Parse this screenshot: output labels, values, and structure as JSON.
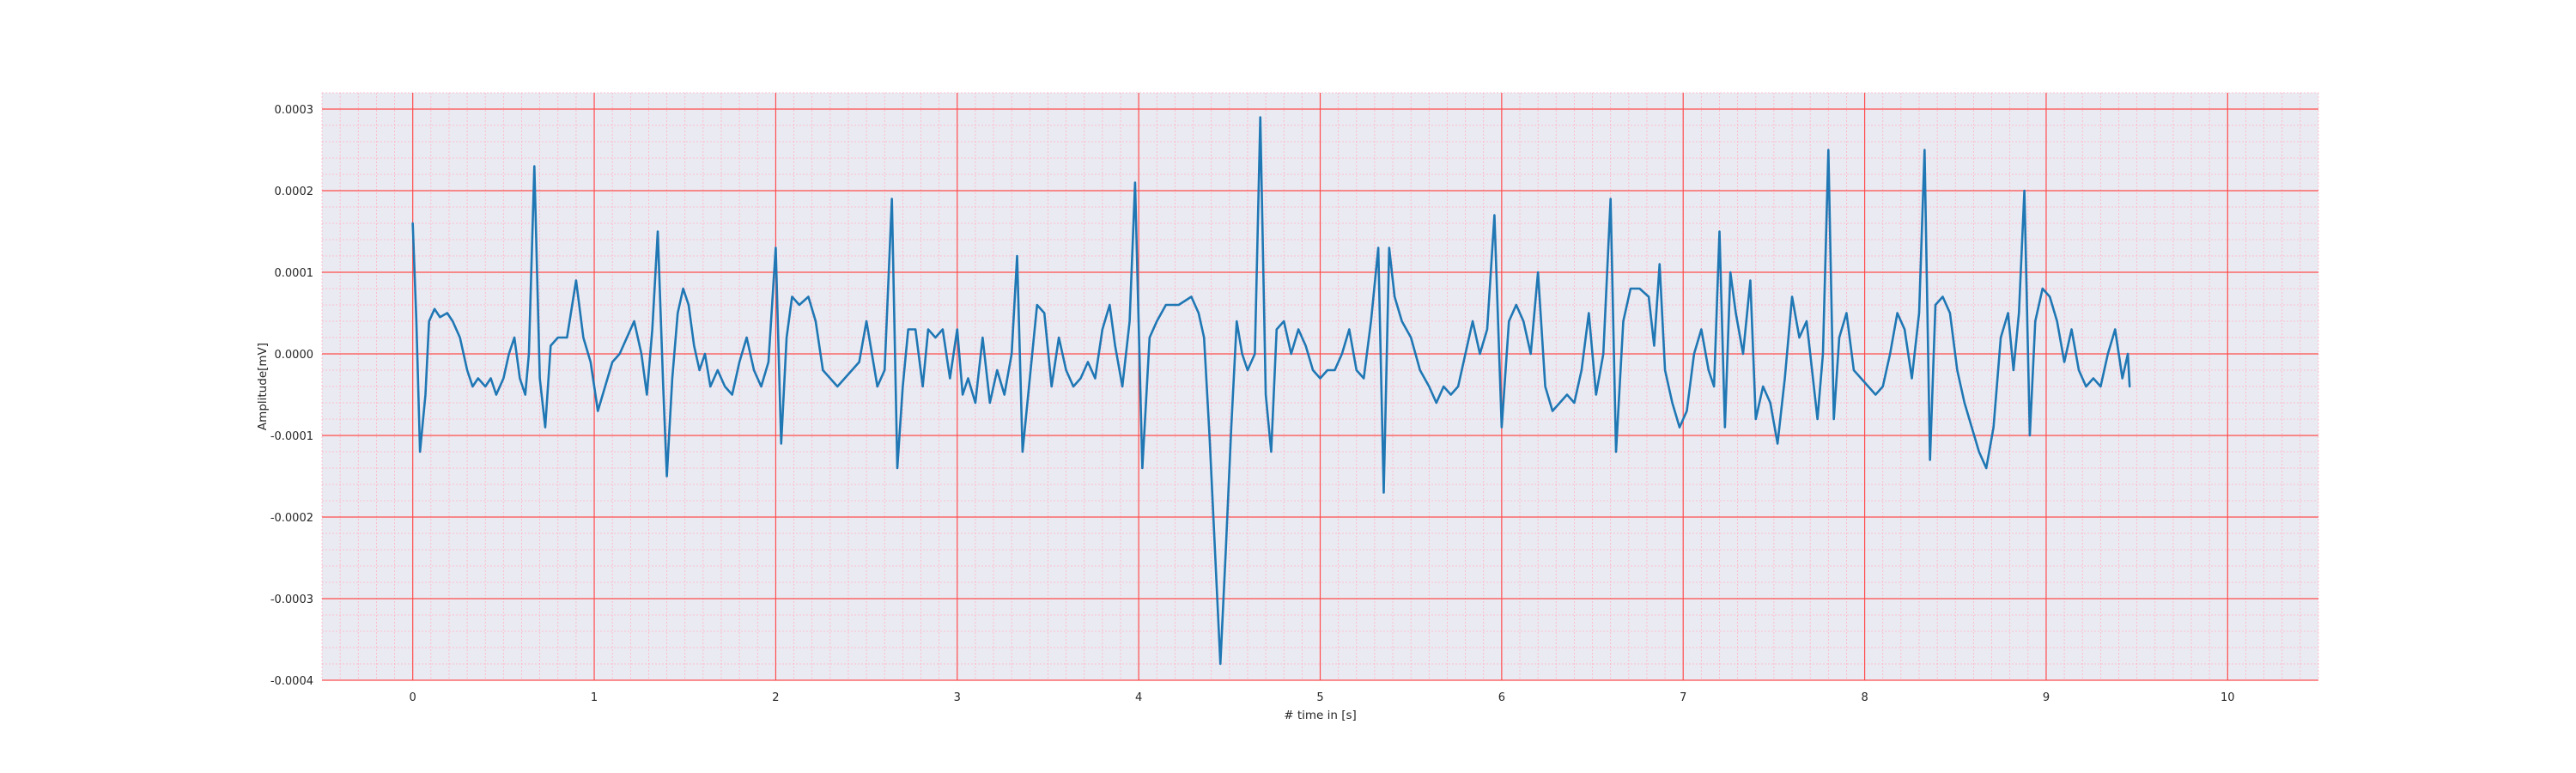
{
  "chart_data": {
    "type": "line",
    "title": "",
    "xlabel": "# time in [s]",
    "ylabel": "Amplitude[mV]",
    "xlim": [
      -0.5,
      10.5
    ],
    "ylim": [
      -0.0004,
      0.00032
    ],
    "x_ticks": [
      0,
      1,
      2,
      3,
      4,
      5,
      6,
      7,
      8,
      9,
      10
    ],
    "x_tick_labels": [
      "0",
      "1",
      "2",
      "3",
      "4",
      "5",
      "6",
      "7",
      "8",
      "9",
      "10"
    ],
    "y_ticks": [
      -0.0004,
      -0.0003,
      -0.0002,
      -0.0001,
      0.0,
      0.0001,
      0.0002,
      0.0003
    ],
    "y_tick_labels": [
      "-0.0004",
      "-0.0003",
      "-0.0002",
      "-0.0001",
      "0.0000",
      "0.0001",
      "0.0002",
      "0.0003"
    ],
    "grid": true,
    "legend": "none",
    "colors": {
      "line": "#1f77b4",
      "plot_background": "#eaeaf2",
      "major_grid": "#ff4d4d",
      "minor_grid": "#ffb3c1"
    },
    "series": [
      {
        "values": [
          [
            0.0,
            0.00016
          ],
          [
            0.02,
            4e-05
          ],
          [
            0.04,
            -0.00012
          ],
          [
            0.07,
            -5e-05
          ],
          [
            0.09,
            4e-05
          ],
          [
            0.12,
            5.5e-05
          ],
          [
            0.15,
            4.5e-05
          ],
          [
            0.19,
            5e-05
          ],
          [
            0.22,
            4e-05
          ],
          [
            0.26,
            2e-05
          ],
          [
            0.3,
            -2e-05
          ],
          [
            0.33,
            -4e-05
          ],
          [
            0.36,
            -3e-05
          ],
          [
            0.4,
            -4e-05
          ],
          [
            0.43,
            -3e-05
          ],
          [
            0.46,
            -5e-05
          ],
          [
            0.5,
            -3e-05
          ],
          [
            0.53,
            0.0
          ],
          [
            0.56,
            2e-05
          ],
          [
            0.59,
            -3e-05
          ],
          [
            0.62,
            -5e-05
          ],
          [
            0.64,
            0.0
          ],
          [
            0.67,
            0.00023
          ],
          [
            0.7,
            -3e-05
          ],
          [
            0.73,
            -9e-05
          ],
          [
            0.76,
            1e-05
          ],
          [
            0.8,
            2e-05
          ],
          [
            0.85,
            2e-05
          ],
          [
            0.9,
            9e-05
          ],
          [
            0.94,
            2e-05
          ],
          [
            0.98,
            -1e-05
          ],
          [
            1.02,
            -7e-05
          ],
          [
            1.06,
            -4e-05
          ],
          [
            1.1,
            -1e-05
          ],
          [
            1.14,
            0.0
          ],
          [
            1.18,
            2e-05
          ],
          [
            1.22,
            4e-05
          ],
          [
            1.26,
            0.0
          ],
          [
            1.29,
            -5e-05
          ],
          [
            1.32,
            3e-05
          ],
          [
            1.35,
            0.00015
          ],
          [
            1.38,
            -4e-05
          ],
          [
            1.4,
            -0.00015
          ],
          [
            1.43,
            -3e-05
          ],
          [
            1.46,
            5e-05
          ],
          [
            1.49,
            8e-05
          ],
          [
            1.52,
            6e-05
          ],
          [
            1.55,
            1e-05
          ],
          [
            1.58,
            -2e-05
          ],
          [
            1.61,
            0.0
          ],
          [
            1.64,
            -4e-05
          ],
          [
            1.68,
            -2e-05
          ],
          [
            1.72,
            -4e-05
          ],
          [
            1.76,
            -5e-05
          ],
          [
            1.8,
            -1e-05
          ],
          [
            1.84,
            2e-05
          ],
          [
            1.88,
            -2e-05
          ],
          [
            1.92,
            -4e-05
          ],
          [
            1.96,
            -1e-05
          ],
          [
            2.0,
            0.00013
          ],
          [
            2.03,
            -0.00011
          ],
          [
            2.06,
            2e-05
          ],
          [
            2.09,
            7e-05
          ],
          [
            2.13,
            6e-05
          ],
          [
            2.18,
            7e-05
          ],
          [
            2.22,
            4e-05
          ],
          [
            2.26,
            -2e-05
          ],
          [
            2.3,
            -3e-05
          ],
          [
            2.34,
            -4e-05
          ],
          [
            2.38,
            -3e-05
          ],
          [
            2.42,
            -2e-05
          ],
          [
            2.46,
            -1e-05
          ],
          [
            2.5,
            4e-05
          ],
          [
            2.53,
            0.0
          ],
          [
            2.56,
            -4e-05
          ],
          [
            2.6,
            -2e-05
          ],
          [
            2.64,
            0.00019
          ],
          [
            2.67,
            -0.00014
          ],
          [
            2.7,
            -4e-05
          ],
          [
            2.73,
            3e-05
          ],
          [
            2.77,
            3e-05
          ],
          [
            2.81,
            -4e-05
          ],
          [
            2.84,
            3e-05
          ],
          [
            2.88,
            2e-05
          ],
          [
            2.92,
            3e-05
          ],
          [
            2.96,
            -3e-05
          ],
          [
            3.0,
            3e-05
          ],
          [
            3.03,
            -5e-05
          ],
          [
            3.06,
            -3e-05
          ],
          [
            3.1,
            -6e-05
          ],
          [
            3.14,
            2e-05
          ],
          [
            3.18,
            -6e-05
          ],
          [
            3.22,
            -2e-05
          ],
          [
            3.26,
            -5e-05
          ],
          [
            3.3,
            0.0
          ],
          [
            3.33,
            0.00012
          ],
          [
            3.36,
            -0.00012
          ],
          [
            3.4,
            -3e-05
          ],
          [
            3.44,
            6e-05
          ],
          [
            3.48,
            5e-05
          ],
          [
            3.52,
            -4e-05
          ],
          [
            3.56,
            2e-05
          ],
          [
            3.6,
            -2e-05
          ],
          [
            3.64,
            -4e-05
          ],
          [
            3.68,
            -3e-05
          ],
          [
            3.72,
            -1e-05
          ],
          [
            3.76,
            -3e-05
          ],
          [
            3.8,
            3e-05
          ],
          [
            3.84,
            6e-05
          ],
          [
            3.87,
            1e-05
          ],
          [
            3.91,
            -4e-05
          ],
          [
            3.95,
            4e-05
          ],
          [
            3.98,
            0.00021
          ],
          [
            4.02,
            -0.00014
          ],
          [
            4.06,
            2e-05
          ],
          [
            4.1,
            4e-05
          ],
          [
            4.15,
            6e-05
          ],
          [
            4.22,
            6e-05
          ],
          [
            4.29,
            7e-05
          ],
          [
            4.33,
            5e-05
          ],
          [
            4.36,
            2e-05
          ],
          [
            4.39,
            -0.0001
          ],
          [
            4.42,
            -0.00024
          ],
          [
            4.45,
            -0.00038
          ],
          [
            4.48,
            -0.00024
          ],
          [
            4.51,
            -9e-05
          ],
          [
            4.54,
            4e-05
          ],
          [
            4.57,
            0.0
          ],
          [
            4.6,
            -2e-05
          ],
          [
            4.64,
            0.0
          ],
          [
            4.67,
            0.00029
          ],
          [
            4.7,
            -5e-05
          ],
          [
            4.73,
            -0.00012
          ],
          [
            4.76,
            3e-05
          ],
          [
            4.8,
            4e-05
          ],
          [
            4.84,
            0.0
          ],
          [
            4.88,
            3e-05
          ],
          [
            4.92,
            1e-05
          ],
          [
            4.96,
            -2e-05
          ],
          [
            5.0,
            -3e-05
          ],
          [
            5.04,
            -2e-05
          ],
          [
            5.08,
            -2e-05
          ],
          [
            5.12,
            0.0
          ],
          [
            5.16,
            3e-05
          ],
          [
            5.2,
            -2e-05
          ],
          [
            5.24,
            -3e-05
          ],
          [
            5.28,
            4e-05
          ],
          [
            5.32,
            0.00013
          ],
          [
            5.35,
            -0.00017
          ],
          [
            5.38,
            0.00013
          ],
          [
            5.41,
            7e-05
          ],
          [
            5.45,
            4e-05
          ],
          [
            5.5,
            2e-05
          ],
          [
            5.55,
            -2e-05
          ],
          [
            5.6,
            -4e-05
          ],
          [
            5.64,
            -6e-05
          ],
          [
            5.68,
            -4e-05
          ],
          [
            5.72,
            -5e-05
          ],
          [
            5.76,
            -4e-05
          ],
          [
            5.8,
            0.0
          ],
          [
            5.84,
            4e-05
          ],
          [
            5.88,
            0.0
          ],
          [
            5.92,
            3e-05
          ],
          [
            5.96,
            0.00017
          ],
          [
            6.0,
            -9e-05
          ],
          [
            6.04,
            4e-05
          ],
          [
            6.08,
            6e-05
          ],
          [
            6.12,
            4e-05
          ],
          [
            6.16,
            0.0
          ],
          [
            6.2,
            0.0001
          ],
          [
            6.24,
            -4e-05
          ],
          [
            6.28,
            -7e-05
          ],
          [
            6.32,
            -6e-05
          ],
          [
            6.36,
            -5e-05
          ],
          [
            6.4,
            -6e-05
          ],
          [
            6.44,
            -2e-05
          ],
          [
            6.48,
            5e-05
          ],
          [
            6.52,
            -5e-05
          ],
          [
            6.56,
            0.0
          ],
          [
            6.6,
            0.00019
          ],
          [
            6.63,
            -0.00012
          ],
          [
            6.67,
            4e-05
          ],
          [
            6.71,
            8e-05
          ],
          [
            6.76,
            8e-05
          ],
          [
            6.81,
            7e-05
          ],
          [
            6.84,
            1e-05
          ],
          [
            6.87,
            0.00011
          ],
          [
            6.9,
            -2e-05
          ],
          [
            6.94,
            -6e-05
          ],
          [
            6.98,
            -9e-05
          ],
          [
            7.02,
            -7e-05
          ],
          [
            7.06,
            0.0
          ],
          [
            7.1,
            3e-05
          ],
          [
            7.14,
            -2e-05
          ],
          [
            7.17,
            -4e-05
          ],
          [
            7.2,
            0.00015
          ],
          [
            7.23,
            -9e-05
          ],
          [
            7.26,
            0.0001
          ],
          [
            7.29,
            5e-05
          ],
          [
            7.33,
            0.0
          ],
          [
            7.37,
            9e-05
          ],
          [
            7.4,
            -8e-05
          ],
          [
            7.44,
            -4e-05
          ],
          [
            7.48,
            -6e-05
          ],
          [
            7.52,
            -0.00011
          ],
          [
            7.56,
            -3e-05
          ],
          [
            7.6,
            7e-05
          ],
          [
            7.64,
            2e-05
          ],
          [
            7.68,
            4e-05
          ],
          [
            7.71,
            -2e-05
          ],
          [
            7.74,
            -8e-05
          ],
          [
            7.77,
            0.0
          ],
          [
            7.8,
            0.00025
          ],
          [
            7.83,
            -8e-05
          ],
          [
            7.86,
            2e-05
          ],
          [
            7.9,
            5e-05
          ],
          [
            7.94,
            -2e-05
          ],
          [
            7.98,
            -3e-05
          ],
          [
            8.02,
            -4e-05
          ],
          [
            8.06,
            -5e-05
          ],
          [
            8.1,
            -4e-05
          ],
          [
            8.14,
            0.0
          ],
          [
            8.18,
            5e-05
          ],
          [
            8.22,
            3e-05
          ],
          [
            8.26,
            -3e-05
          ],
          [
            8.3,
            5e-05
          ],
          [
            8.33,
            0.00025
          ],
          [
            8.36,
            -0.00013
          ],
          [
            8.39,
            6e-05
          ],
          [
            8.43,
            7e-05
          ],
          [
            8.47,
            5e-05
          ],
          [
            8.51,
            -2e-05
          ],
          [
            8.55,
            -6e-05
          ],
          [
            8.59,
            -9e-05
          ],
          [
            8.63,
            -0.00012
          ],
          [
            8.67,
            -0.00014
          ],
          [
            8.71,
            -9e-05
          ],
          [
            8.75,
            2e-05
          ],
          [
            8.79,
            5e-05
          ],
          [
            8.82,
            -2e-05
          ],
          [
            8.85,
            5e-05
          ],
          [
            8.88,
            0.0002
          ],
          [
            8.91,
            -0.0001
          ],
          [
            8.94,
            4e-05
          ],
          [
            8.98,
            8e-05
          ],
          [
            9.02,
            7e-05
          ],
          [
            9.06,
            4e-05
          ],
          [
            9.1,
            -1e-05
          ],
          [
            9.14,
            3e-05
          ],
          [
            9.18,
            -2e-05
          ],
          [
            9.22,
            -4e-05
          ],
          [
            9.26,
            -3e-05
          ],
          [
            9.3,
            -4e-05
          ],
          [
            9.34,
            0.0
          ],
          [
            9.38,
            3e-05
          ],
          [
            9.42,
            -3e-05
          ],
          [
            9.45,
            0.0
          ],
          [
            9.46,
            -4e-05
          ]
        ]
      }
    ]
  }
}
